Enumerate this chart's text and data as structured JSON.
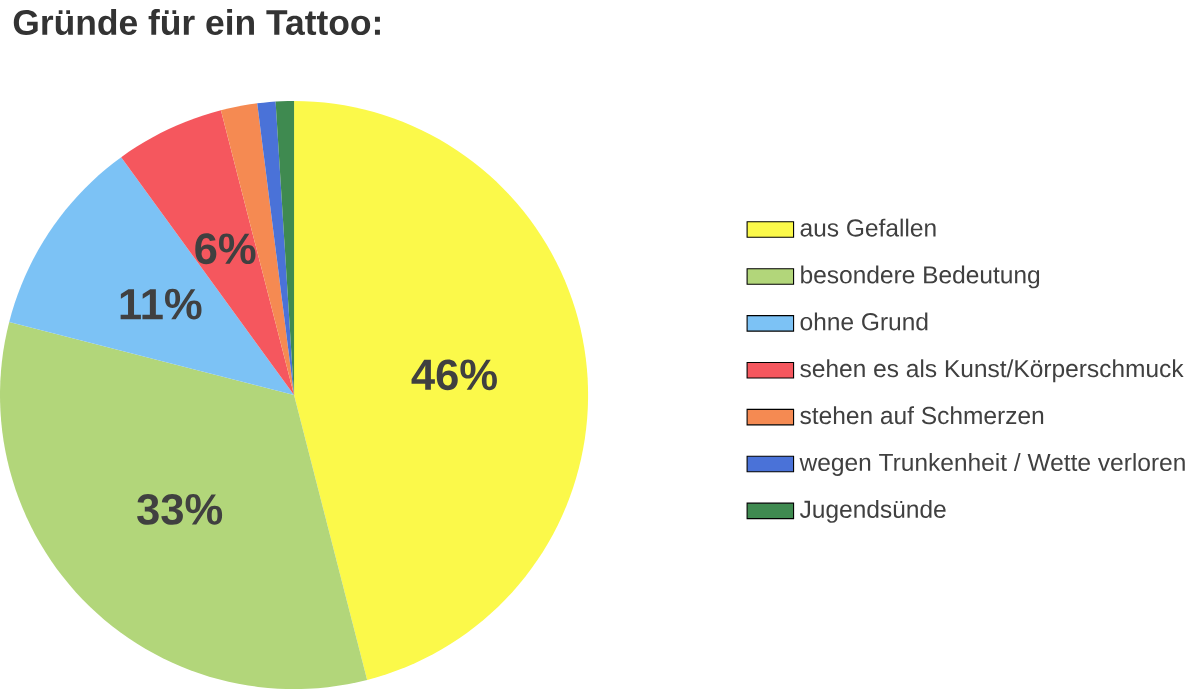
{
  "chart_data": {
    "type": "pie",
    "title": "Gründe für ein Tattoo:",
    "categories": [
      "aus Gefallen",
      "besondere Bedeutung",
      "ohne Grund",
      "sehen es als Kunst/Körperschmuck",
      "stehen auf Schmerzen",
      "wegen Trunkenheit / Wette verloren",
      "Jugendsünde"
    ],
    "values": [
      46,
      33,
      11,
      6,
      2,
      1,
      1
    ],
    "value_labels": [
      "46%",
      "33%",
      "11%",
      "6%",
      null,
      null,
      null
    ],
    "colors": [
      "#fbf94a",
      "#b2d67a",
      "#7cc2f5",
      "#f5575e",
      "#f58a52",
      "#4a72d8",
      "#3f8a50"
    ],
    "legend": "right"
  }
}
